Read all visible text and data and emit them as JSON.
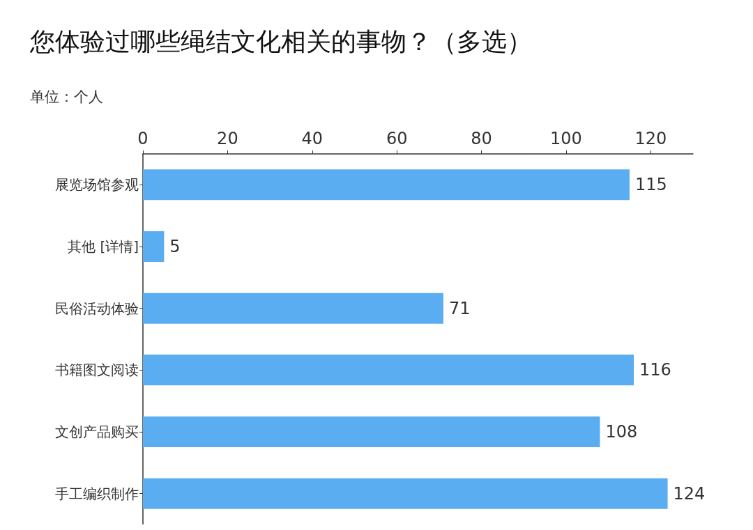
{
  "chart_data": {
    "type": "bar",
    "orientation": "horizontal",
    "title": "您体验过哪些绳结文化相关的事物？（多选）",
    "subtitle": "单位：个人",
    "categories": [
      "展览场馆参观",
      "其他 [详情]",
      "民俗活动体验",
      "书籍图文阅读",
      "文创产品购买",
      "手工编织制作"
    ],
    "values": [
      115,
      5,
      71,
      116,
      108,
      124
    ],
    "color": "#5aadf0",
    "xlim": [
      0,
      130
    ],
    "xticks": [
      0,
      20,
      40,
      60,
      80,
      100,
      120
    ],
    "data_labels": true,
    "grid": false
  }
}
